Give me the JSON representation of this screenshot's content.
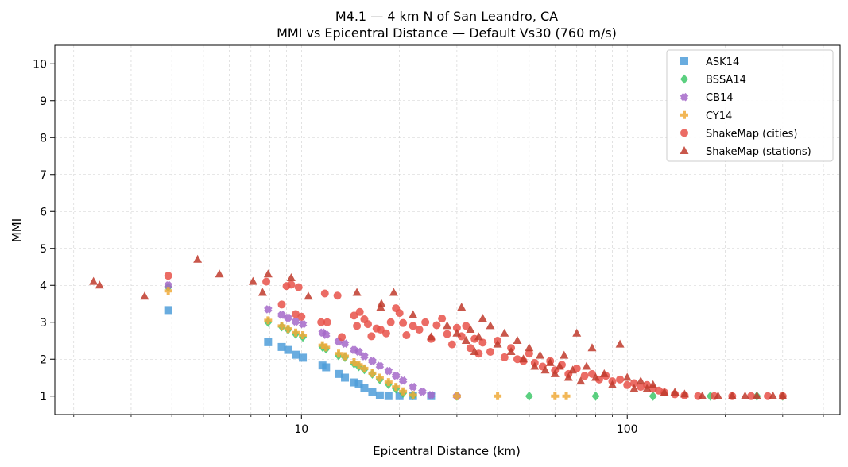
{
  "chart_data": {
    "type": "scatter",
    "title": "M4.1 — 4 km N of San Leandro, CA",
    "subtitle": "MMI vs Epicentral Distance — Default Vs30 (760 m/s)",
    "xlabel": "Epicentral Distance (km)",
    "ylabel": "MMI",
    "xscale": "log",
    "xlim": [
      1.75,
      450
    ],
    "ylim": [
      0.5,
      10.5
    ],
    "xticks": [
      10,
      100
    ],
    "xtick_labels": [
      "10",
      "100"
    ],
    "yticks": [
      1,
      2,
      3,
      4,
      5,
      6,
      7,
      8,
      9,
      10
    ],
    "ytick_labels": [
      "1",
      "2",
      "3",
      "4",
      "5",
      "6",
      "7",
      "8",
      "9",
      "10"
    ],
    "grid": true,
    "legend_position": "top-right",
    "series": [
      {
        "name": "ASK14",
        "marker": "square",
        "color": "#4f9ed9",
        "points": [
          [
            3.9,
            3.33
          ],
          [
            7.9,
            2.46
          ],
          [
            8.7,
            2.33
          ],
          [
            9.1,
            2.25
          ],
          [
            9.6,
            2.12
          ],
          [
            10.1,
            2.04
          ],
          [
            11.6,
            1.83
          ],
          [
            11.9,
            1.78
          ],
          [
            13.0,
            1.6
          ],
          [
            13.6,
            1.5
          ],
          [
            14.5,
            1.37
          ],
          [
            15.0,
            1.32
          ],
          [
            15.6,
            1.22
          ],
          [
            16.5,
            1.12
          ],
          [
            17.4,
            1.02
          ],
          [
            18.5,
            1.0
          ],
          [
            20.0,
            1.0
          ],
          [
            22.0,
            1.0
          ],
          [
            25.0,
            1.0
          ]
        ]
      },
      {
        "name": "BSSA14",
        "marker": "diamond",
        "color": "#3ec86a",
        "points": [
          [
            3.9,
            3.95
          ],
          [
            7.9,
            3.0
          ],
          [
            8.7,
            2.88
          ],
          [
            9.1,
            2.8
          ],
          [
            9.6,
            2.68
          ],
          [
            10.1,
            2.6
          ],
          [
            11.6,
            2.33
          ],
          [
            11.9,
            2.28
          ],
          [
            13.0,
            2.1
          ],
          [
            13.6,
            2.05
          ],
          [
            14.5,
            1.88
          ],
          [
            15.0,
            1.8
          ],
          [
            15.6,
            1.72
          ],
          [
            16.5,
            1.6
          ],
          [
            17.4,
            1.45
          ],
          [
            18.5,
            1.32
          ],
          [
            19.5,
            1.2
          ],
          [
            20.5,
            1.08
          ],
          [
            22.0,
            1.02
          ],
          [
            30,
            1.0
          ],
          [
            50,
            1.0
          ],
          [
            80,
            1.0
          ],
          [
            120,
            1.0
          ],
          [
            180,
            1.0
          ],
          [
            250,
            1.0
          ],
          [
            300,
            1.0
          ]
        ]
      },
      {
        "name": "CB14",
        "marker": "x",
        "color": "#a569c9",
        "points": [
          [
            3.9,
            4.0
          ],
          [
            7.9,
            3.35
          ],
          [
            8.7,
            3.2
          ],
          [
            9.1,
            3.12
          ],
          [
            9.6,
            3.02
          ],
          [
            10.1,
            2.95
          ],
          [
            11.6,
            2.72
          ],
          [
            11.9,
            2.66
          ],
          [
            13.0,
            2.48
          ],
          [
            13.6,
            2.42
          ],
          [
            14.5,
            2.25
          ],
          [
            15.0,
            2.2
          ],
          [
            15.6,
            2.08
          ],
          [
            16.5,
            1.95
          ],
          [
            17.4,
            1.82
          ],
          [
            18.5,
            1.68
          ],
          [
            19.5,
            1.55
          ],
          [
            20.5,
            1.42
          ],
          [
            22.0,
            1.25
          ],
          [
            23.5,
            1.12
          ],
          [
            25,
            1.03
          ],
          [
            30,
            1.0
          ]
        ]
      },
      {
        "name": "CY14",
        "marker": "plus",
        "color": "#f0aa3a",
        "points": [
          [
            3.9,
            3.85
          ],
          [
            7.9,
            3.05
          ],
          [
            8.7,
            2.9
          ],
          [
            9.1,
            2.82
          ],
          [
            9.6,
            2.72
          ],
          [
            10.1,
            2.65
          ],
          [
            11.6,
            2.38
          ],
          [
            11.9,
            2.32
          ],
          [
            13.0,
            2.15
          ],
          [
            13.6,
            2.08
          ],
          [
            14.5,
            1.92
          ],
          [
            15.0,
            1.85
          ],
          [
            15.6,
            1.75
          ],
          [
            16.5,
            1.62
          ],
          [
            17.4,
            1.5
          ],
          [
            18.5,
            1.38
          ],
          [
            19.5,
            1.25
          ],
          [
            20.5,
            1.13
          ],
          [
            22.0,
            1.03
          ],
          [
            30,
            1.0
          ],
          [
            40,
            1.0
          ],
          [
            60,
            1.0
          ],
          [
            65,
            1.0
          ]
        ]
      },
      {
        "name": "ShakeMap (cities)",
        "marker": "circle",
        "color": "#e8524a",
        "points": [
          [
            3.9,
            4.26
          ],
          [
            7.8,
            4.1
          ],
          [
            8.7,
            3.48
          ],
          [
            9.0,
            3.98
          ],
          [
            9.3,
            4.02
          ],
          [
            9.6,
            3.22
          ],
          [
            9.8,
            3.95
          ],
          [
            10.0,
            3.15
          ],
          [
            11.5,
            3.0
          ],
          [
            11.8,
            3.78
          ],
          [
            12.0,
            3.0
          ],
          [
            12.9,
            3.72
          ],
          [
            13.3,
            2.6
          ],
          [
            14.5,
            3.18
          ],
          [
            14.8,
            2.9
          ],
          [
            15.1,
            3.28
          ],
          [
            15.6,
            3.08
          ],
          [
            16.0,
            2.95
          ],
          [
            16.4,
            2.62
          ],
          [
            17.0,
            2.83
          ],
          [
            17.5,
            2.8
          ],
          [
            18.2,
            2.7
          ],
          [
            18.8,
            3.0
          ],
          [
            19.5,
            3.38
          ],
          [
            20.0,
            3.25
          ],
          [
            20.5,
            2.98
          ],
          [
            21.0,
            2.65
          ],
          [
            22.0,
            2.9
          ],
          [
            23.0,
            2.8
          ],
          [
            24.0,
            3.0
          ],
          [
            25.0,
            2.55
          ],
          [
            26.0,
            2.92
          ],
          [
            27.0,
            3.1
          ],
          [
            28.0,
            2.68
          ],
          [
            29.0,
            2.4
          ],
          [
            30.0,
            2.85
          ],
          [
            31.0,
            2.62
          ],
          [
            32.0,
            2.9
          ],
          [
            33.0,
            2.3
          ],
          [
            34.0,
            2.55
          ],
          [
            35.0,
            2.15
          ],
          [
            36.0,
            2.45
          ],
          [
            38.0,
            2.2
          ],
          [
            40.0,
            2.5
          ],
          [
            42.0,
            2.05
          ],
          [
            44.0,
            2.3
          ],
          [
            46.0,
            2.0
          ],
          [
            48.0,
            1.95
          ],
          [
            50.0,
            2.15
          ],
          [
            52.0,
            1.9
          ],
          [
            55.0,
            1.8
          ],
          [
            58.0,
            1.95
          ],
          [
            60.0,
            1.7
          ],
          [
            63.0,
            1.85
          ],
          [
            66.0,
            1.6
          ],
          [
            70.0,
            1.75
          ],
          [
            74.0,
            1.55
          ],
          [
            78.0,
            1.6
          ],
          [
            82.0,
            1.45
          ],
          [
            86.0,
            1.55
          ],
          [
            90.0,
            1.4
          ],
          [
            95.0,
            1.45
          ],
          [
            100.0,
            1.3
          ],
          [
            105.0,
            1.35
          ],
          [
            110.0,
            1.25
          ],
          [
            115.0,
            1.3
          ],
          [
            120.0,
            1.2
          ],
          [
            125.0,
            1.15
          ],
          [
            130.0,
            1.1
          ],
          [
            140.0,
            1.05
          ],
          [
            150.0,
            1.02
          ],
          [
            165.0,
            1.0
          ],
          [
            185.0,
            1.0
          ],
          [
            210.0,
            1.0
          ],
          [
            240.0,
            1.0
          ],
          [
            270.0,
            1.0
          ],
          [
            300.0,
            1.0
          ]
        ]
      },
      {
        "name": "ShakeMap (stations)",
        "marker": "triangle",
        "color": "#c0392b",
        "points": [
          [
            2.3,
            4.1
          ],
          [
            2.4,
            4.0
          ],
          [
            3.3,
            3.7
          ],
          [
            4.8,
            4.7
          ],
          [
            5.6,
            4.3
          ],
          [
            7.1,
            4.1
          ],
          [
            7.6,
            3.8
          ],
          [
            7.9,
            4.3
          ],
          [
            9.3,
            4.2
          ],
          [
            10.5,
            3.7
          ],
          [
            14.8,
            3.8
          ],
          [
            17.5,
            3.4
          ],
          [
            17.6,
            3.5
          ],
          [
            19.2,
            3.8
          ],
          [
            22.0,
            3.2
          ],
          [
            25.0,
            2.6
          ],
          [
            28.0,
            2.9
          ],
          [
            30.0,
            2.7
          ],
          [
            31.0,
            3.4
          ],
          [
            32.0,
            2.5
          ],
          [
            33.0,
            2.8
          ],
          [
            34.0,
            2.2
          ],
          [
            35.0,
            2.6
          ],
          [
            36.0,
            3.1
          ],
          [
            38.0,
            2.9
          ],
          [
            40.0,
            2.4
          ],
          [
            42.0,
            2.7
          ],
          [
            44.0,
            2.2
          ],
          [
            46.0,
            2.5
          ],
          [
            48.0,
            2.0
          ],
          [
            50.0,
            2.3
          ],
          [
            52.0,
            1.8
          ],
          [
            54.0,
            2.1
          ],
          [
            56.0,
            1.7
          ],
          [
            58.0,
            1.9
          ],
          [
            60.0,
            1.6
          ],
          [
            62.0,
            1.8
          ],
          [
            64.0,
            2.1
          ],
          [
            66.0,
            1.5
          ],
          [
            68.0,
            1.7
          ],
          [
            70.0,
            2.7
          ],
          [
            72.0,
            1.4
          ],
          [
            75.0,
            1.8
          ],
          [
            78.0,
            2.3
          ],
          [
            80.0,
            1.5
          ],
          [
            85.0,
            1.6
          ],
          [
            90.0,
            1.3
          ],
          [
            95.0,
            2.4
          ],
          [
            100.0,
            1.5
          ],
          [
            105.0,
            1.2
          ],
          [
            110.0,
            1.4
          ],
          [
            115.0,
            1.2
          ],
          [
            120.0,
            1.3
          ],
          [
            130.0,
            1.1
          ],
          [
            140.0,
            1.1
          ],
          [
            150.0,
            1.05
          ],
          [
            170.0,
            1.0
          ],
          [
            190.0,
            1.0
          ],
          [
            210.0,
            1.0
          ],
          [
            230.0,
            1.0
          ],
          [
            250.0,
            1.0
          ],
          [
            280.0,
            1.0
          ],
          [
            300.0,
            1.0
          ]
        ]
      }
    ]
  }
}
